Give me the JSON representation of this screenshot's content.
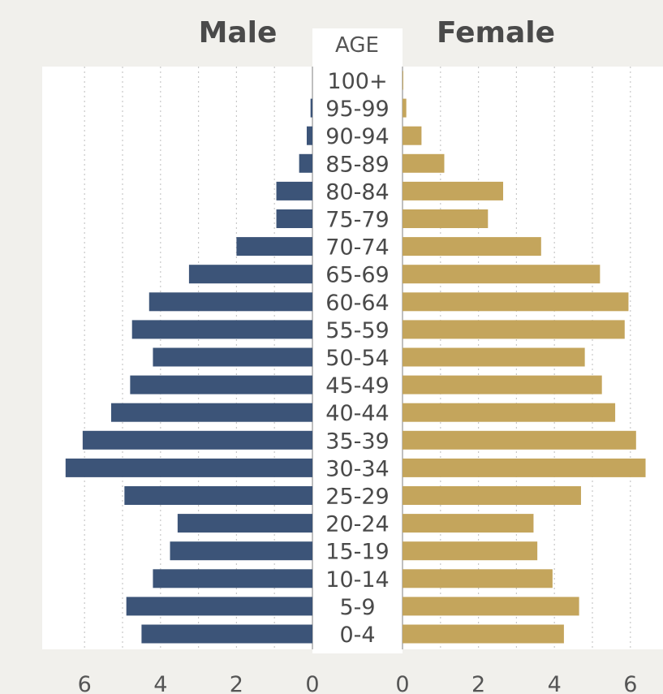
{
  "chart_data": {
    "type": "bar",
    "orientation": "horizontal-pyramid",
    "title_left": "Male",
    "title_center": "AGE",
    "title_right": "Female",
    "categories": [
      "100+",
      "95-99",
      "90-94",
      "85-89",
      "80-84",
      "75-79",
      "70-74",
      "65-69",
      "60-64",
      "55-59",
      "50-54",
      "45-49",
      "40-44",
      "35-39",
      "30-34",
      "25-29",
      "20-24",
      "15-19",
      "10-14",
      "5-9",
      "0-4"
    ],
    "series": [
      {
        "name": "Male",
        "color": "#3c5478",
        "values": [
          0.0,
          0.05,
          0.15,
          0.35,
          0.95,
          0.95,
          2.0,
          3.25,
          4.3,
          4.75,
          4.2,
          4.8,
          5.3,
          6.05,
          6.5,
          4.95,
          3.55,
          3.75,
          4.2,
          4.9,
          4.5
        ]
      },
      {
        "name": "Female",
        "color": "#c4a55c",
        "values": [
          0.02,
          0.1,
          0.5,
          1.1,
          2.65,
          2.25,
          3.65,
          5.2,
          5.95,
          5.85,
          4.8,
          5.25,
          5.6,
          6.15,
          6.4,
          4.7,
          3.45,
          3.55,
          3.95,
          4.65,
          4.25
        ]
      }
    ],
    "xlim": [
      0,
      6.7
    ],
    "ticks_left": [
      "6",
      "4",
      "2",
      "0"
    ],
    "ticks_right": [
      "0",
      "2",
      "4",
      "6"
    ],
    "grid": "vertical-dotted"
  }
}
